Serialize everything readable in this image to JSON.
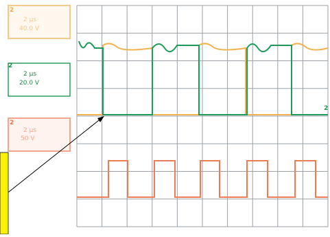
{
  "channels": [
    {
      "label": "2",
      "time": "2 µs",
      "volts": "40.0 V"
    },
    {
      "label": "2",
      "time": "2 µs",
      "volts": "20.0 V"
    },
    {
      "label": "2",
      "time": "2 µs",
      "volts": "50 V"
    }
  ],
  "marker": "2"
}
